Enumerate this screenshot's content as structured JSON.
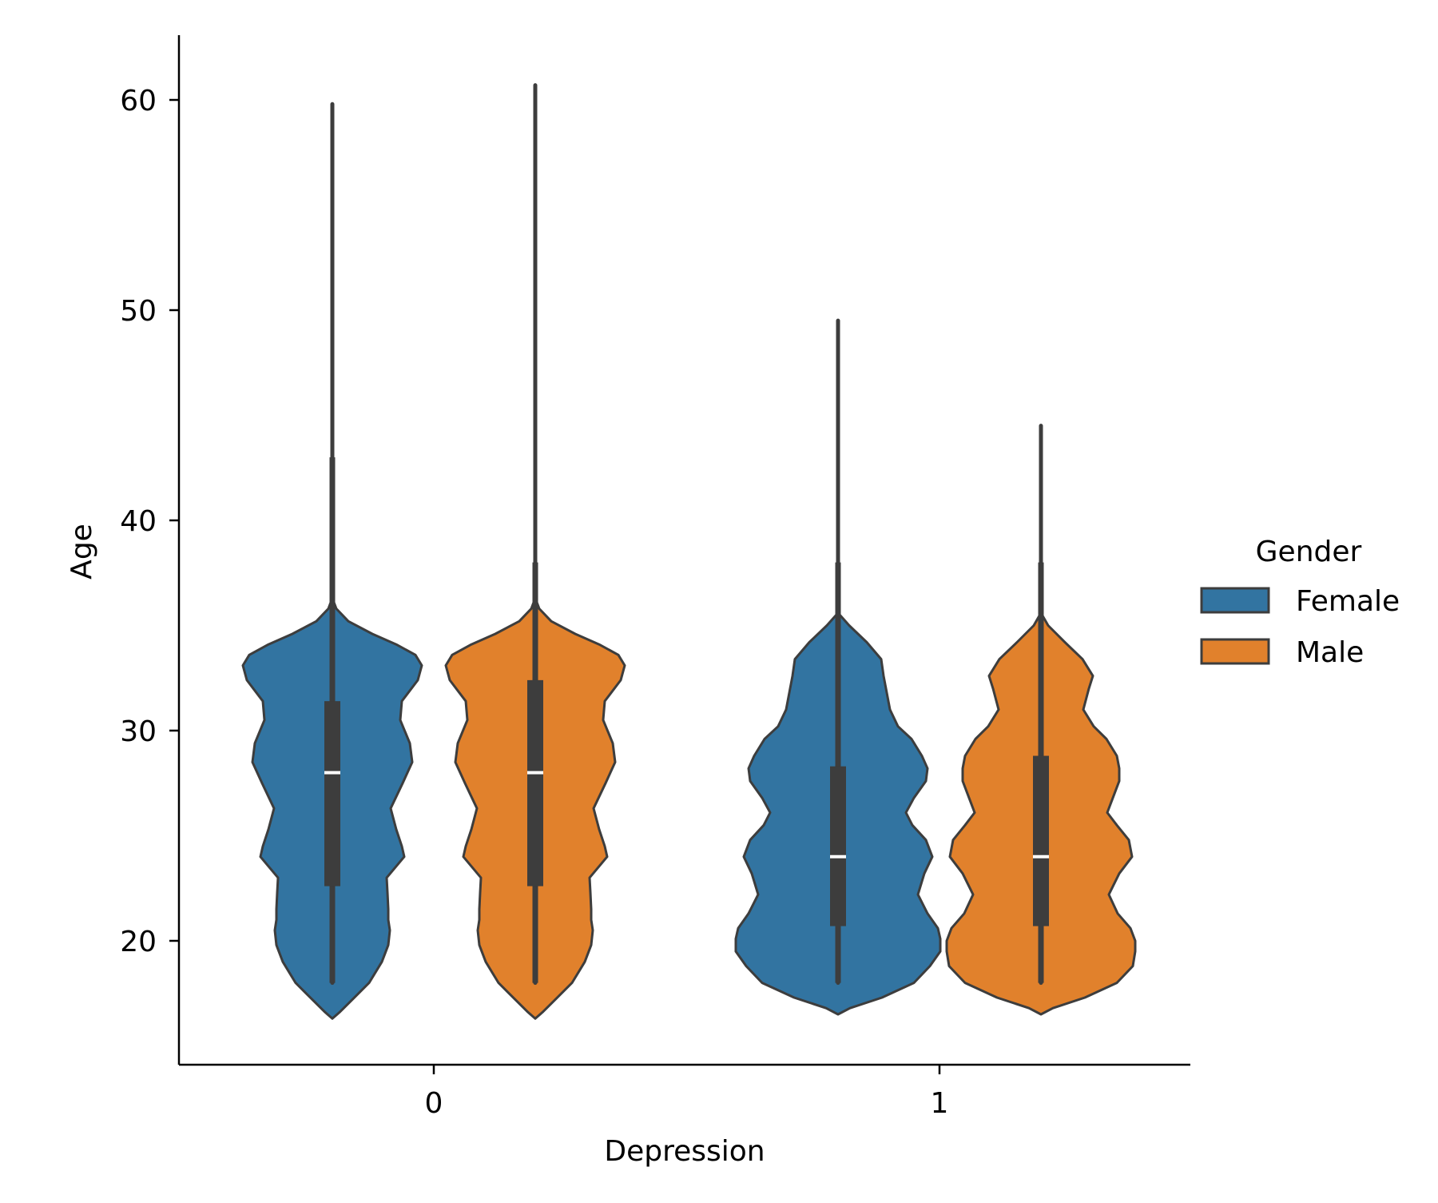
{
  "chart_data": {
    "type": "violin",
    "xlabel": "Depression",
    "ylabel": "Age",
    "categories": [
      "0",
      "1"
    ],
    "yticks": [
      20,
      30,
      40,
      50,
      60
    ],
    "ylim": [
      14,
      63
    ],
    "grid": false,
    "legend": {
      "title": "Gender",
      "placement": "center-right",
      "entries": [
        {
          "name": "Female",
          "color": "#3274a1"
        },
        {
          "name": "Male",
          "color": "#e1812c"
        }
      ]
    },
    "series": [
      {
        "name": "Female",
        "color": "#3274a1",
        "stats": [
          {
            "category": "0",
            "min": 18,
            "q1": 22.6,
            "median": 28,
            "q3": 31.4,
            "whisker_high": 43,
            "max": 59.8
          },
          {
            "category": "1",
            "min": 18,
            "q1": 20.7,
            "median": 24,
            "q3": 28.3,
            "whisker_high": 38,
            "max": 49.5
          }
        ]
      },
      {
        "name": "Male",
        "color": "#e1812c",
        "stats": [
          {
            "category": "0",
            "min": 18,
            "q1": 22.6,
            "median": 28,
            "q3": 32.4,
            "whisker_high": 38,
            "max": 60.7
          },
          {
            "category": "1",
            "min": 18,
            "q1": 20.7,
            "median": 24,
            "q3": 28.8,
            "whisker_high": 38,
            "max": 44.5
          }
        ]
      }
    ]
  },
  "colors": {
    "outline": "#3d3d3d",
    "median": "#ffffff",
    "axis": "#000000"
  }
}
